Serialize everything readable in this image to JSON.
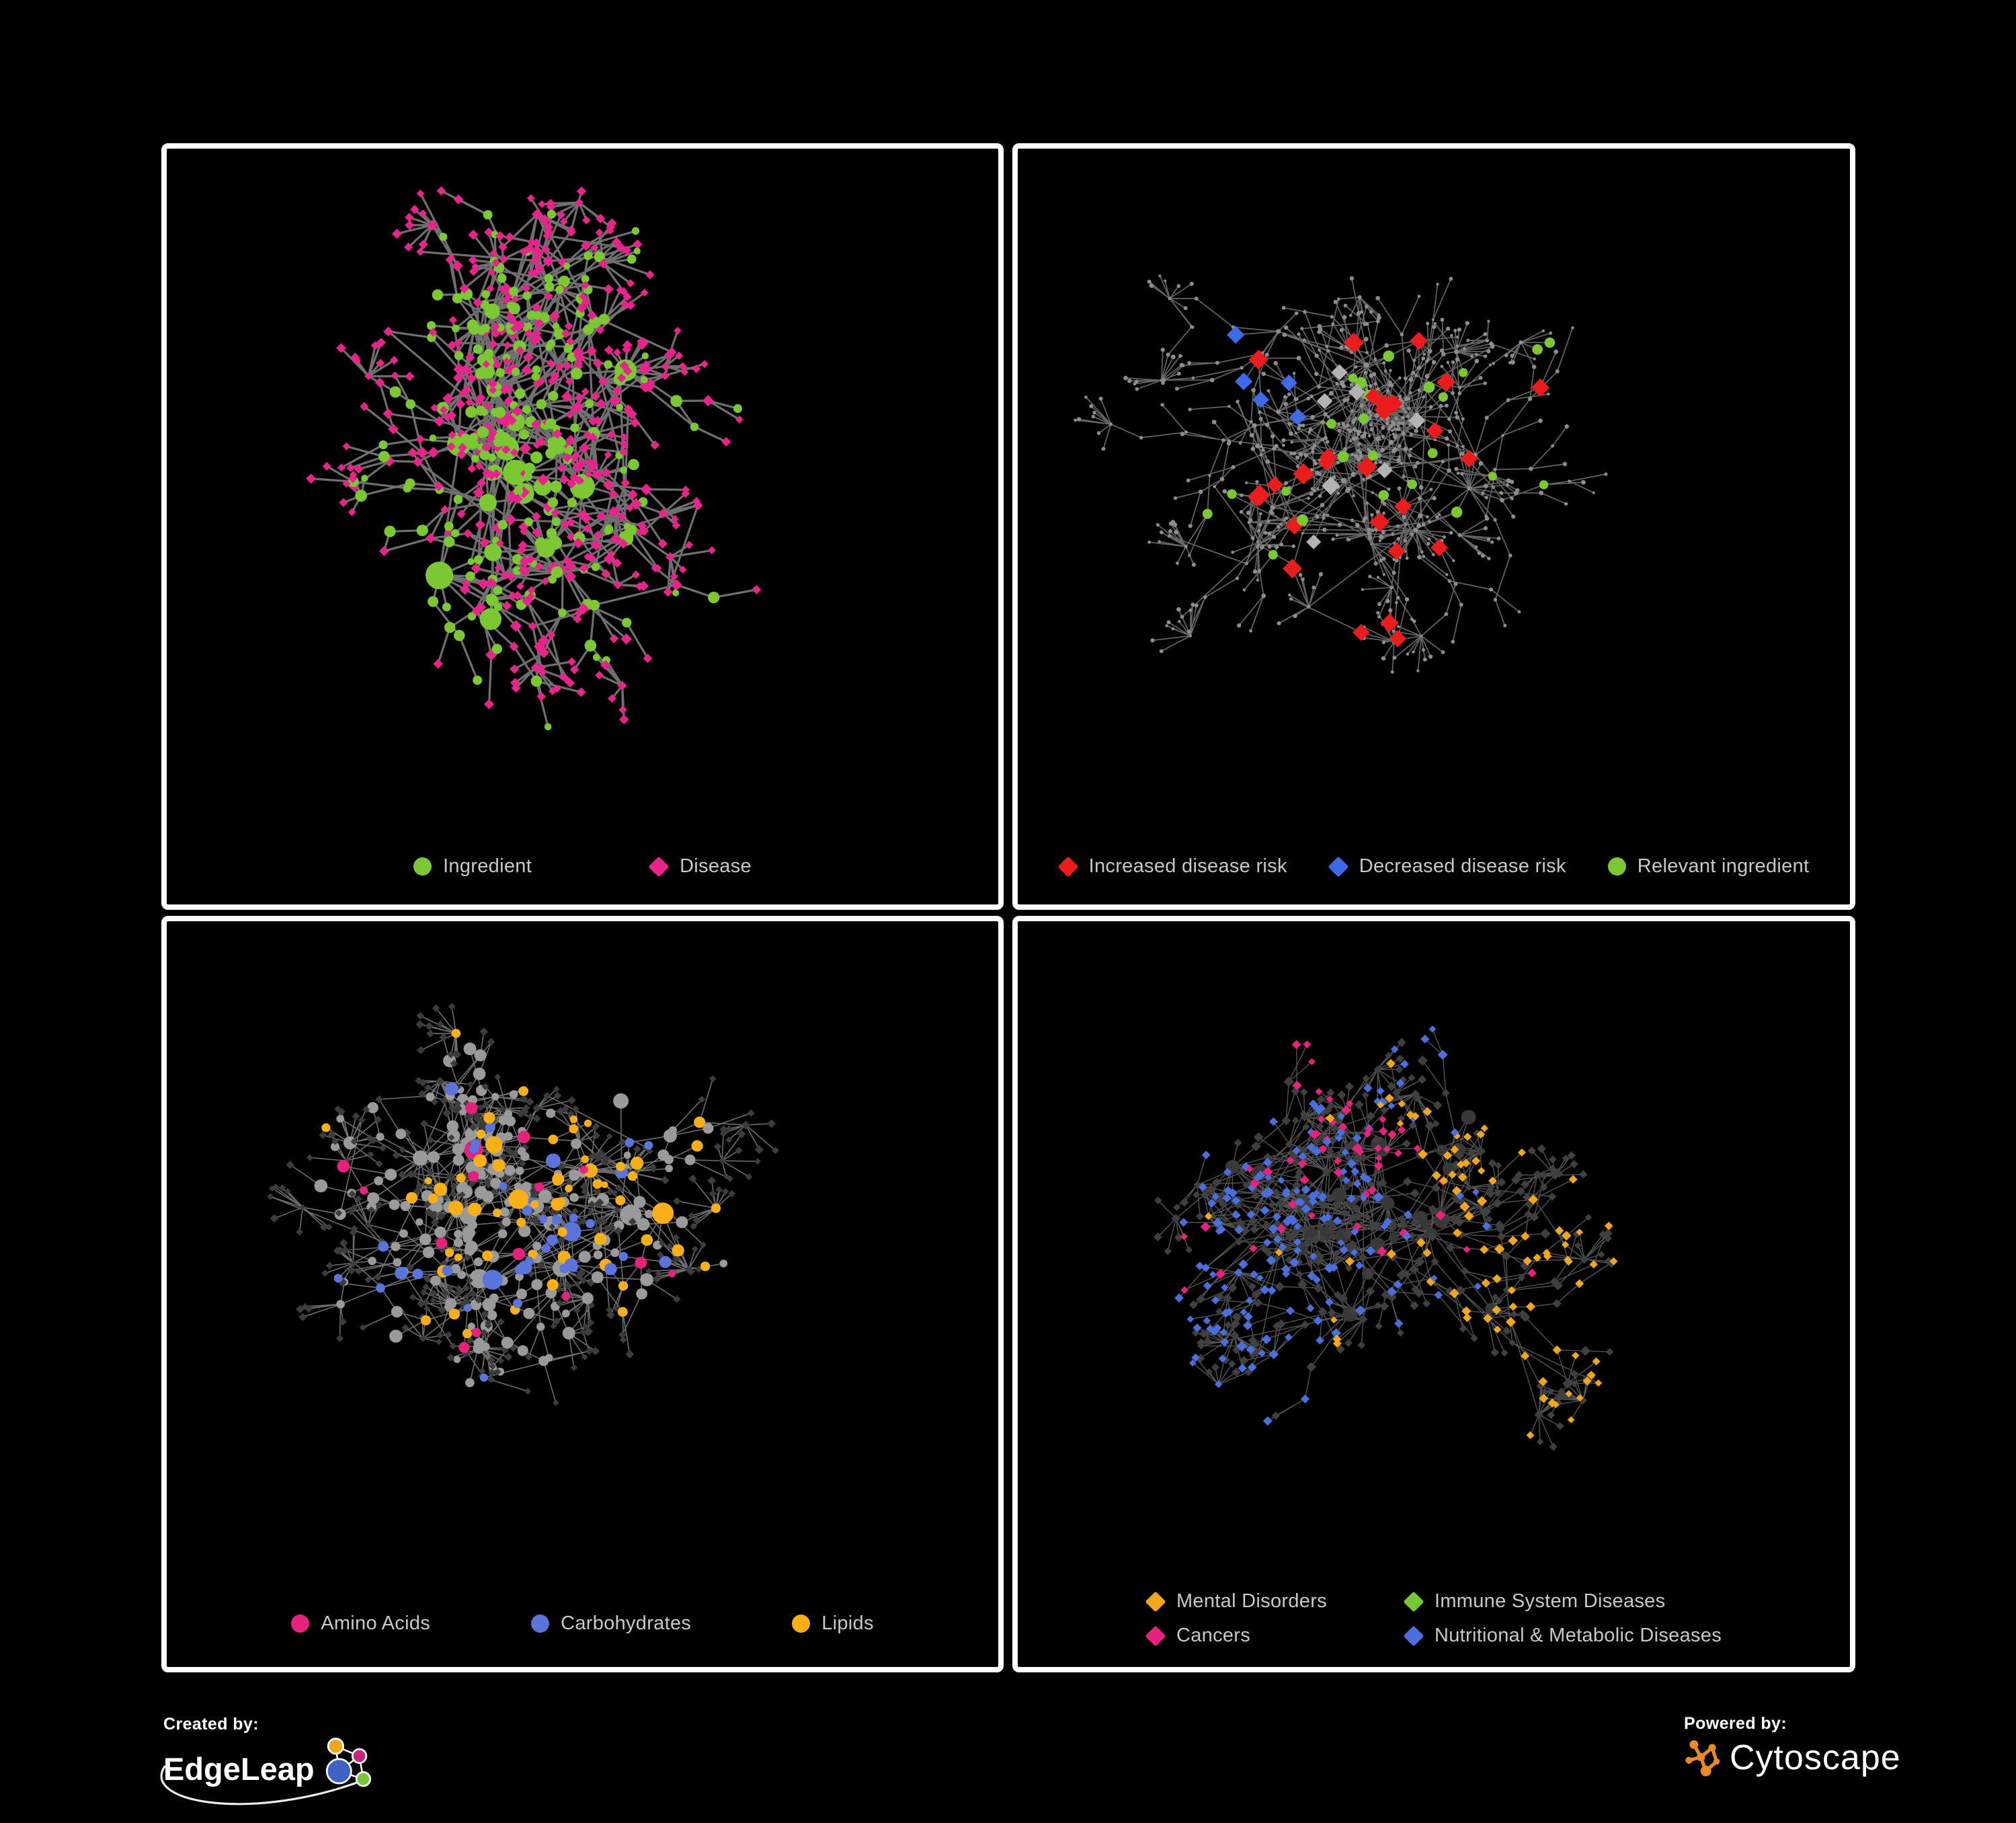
{
  "figure": {
    "background_color": "#000000",
    "panel_border_color": "#ffffff",
    "legend_text_color": "#c8c8c8"
  },
  "panels": [
    {
      "name": "ingredient-disease-network",
      "position": "top-left",
      "legend": [
        {
          "label": "Ingredient",
          "shape": "circle",
          "color": "#7cc832"
        },
        {
          "label": "Disease",
          "shape": "diamond",
          "color": "#e8248c"
        }
      ],
      "network": {
        "style": "p1",
        "edge_color": "#757575",
        "colors": {
          "ingredient": "#7cc832",
          "disease": "#e8248c"
        }
      }
    },
    {
      "name": "disease-risk-network",
      "position": "top-right",
      "legend": [
        {
          "label": "Increased disease risk",
          "shape": "diamond",
          "color": "#ec1c1c"
        },
        {
          "label": "Decreased disease risk",
          "shape": "diamond",
          "color": "#3d6be8"
        },
        {
          "label": "Relevant ingredient",
          "shape": "circle",
          "color": "#7cc832"
        }
      ],
      "network": {
        "style": "p2",
        "edge_color": "#6f6f6f",
        "colors": {
          "node": "#8d8d8d",
          "increased": "#ec1c1c",
          "decreased": "#3d6be8",
          "ingredient": "#7cc832",
          "neutral": "#b3b3b3"
        }
      }
    },
    {
      "name": "ingredient-category-network",
      "position": "bottom-left",
      "legend": [
        {
          "label": "Amino Acids",
          "shape": "circle",
          "color": "#e8217f"
        },
        {
          "label": "Carbohydrates",
          "shape": "circle",
          "color": "#5b74dc"
        },
        {
          "label": "Lipids",
          "shape": "circle",
          "color": "#f9b016"
        }
      ],
      "network": {
        "style": "p3",
        "edge_color": "#8a8a8a",
        "colors": {
          "other": "#9a9a9a",
          "amino": "#e8217f",
          "carb": "#5b74dc",
          "lipid": "#f9b016",
          "disease": "#3c3c3c"
        }
      }
    },
    {
      "name": "disease-category-network",
      "position": "bottom-right",
      "legend": [
        {
          "label": "Mental Disorders",
          "shape": "diamond",
          "color": "#f2a71b"
        },
        {
          "label": "Immune System Diseases",
          "shape": "diamond",
          "color": "#76c832"
        },
        {
          "label": "Cancers",
          "shape": "diamond",
          "color": "#e8217f"
        },
        {
          "label": "Nutritional & Metabolic Diseases",
          "shape": "diamond",
          "color": "#4a6edd"
        }
      ],
      "network": {
        "style": "p4",
        "edge_color": "#616161",
        "colors": {
          "other": "#3f3f3f",
          "hub": "#383838",
          "mental": "#f2a71b",
          "cancer": "#e8217f",
          "nutritional": "#4a6edd",
          "immune": "#76c832"
        }
      }
    }
  ],
  "footer": {
    "created_by_label": "Created by:",
    "created_by_brand": "EdgeLeap",
    "powered_by_label": "Powered by:",
    "powered_by_brand": "Cytoscape",
    "edgeleap_logo_colors": {
      "orange": "#f2a71b",
      "magenta": "#c4267e",
      "blue": "#3f62c6",
      "green": "#76c832"
    },
    "cytoscape_logo_color": "#e98a24"
  }
}
